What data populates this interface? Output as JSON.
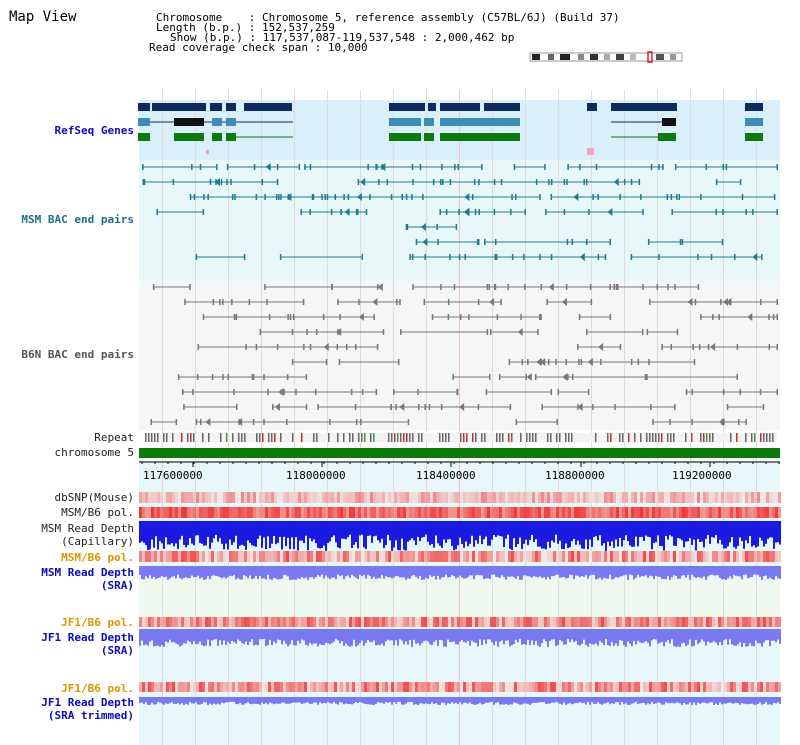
{
  "page": {
    "title": "Map View"
  },
  "info": {
    "chromosome_key": "Chromosome",
    "chromosome_val": "Chromosome 5, reference assembly (C57BL/6J) (Build 37)",
    "length_key": "Length (b.p.)",
    "length_val": "152,537,259",
    "show_key": "Show (b.p.)",
    "show_val": "117,537,087-119,537,548 : 2,000,462 bp",
    "read_cov_key": "Read coverage check span",
    "read_cov_val": "10,000"
  },
  "tracks": {
    "refseq": "RefSeq Genes",
    "msm_bac": "MSM BAC end pairs",
    "b6n_bac": "B6N BAC end pairs",
    "repeat": "Repeat",
    "chromosome": "chromosome 5",
    "dbsnp": "dbSNP(Mouse)",
    "msm_b6_pol": "MSM/B6 pol.",
    "msm_read_depth_cap_1": "MSM Read Depth",
    "msm_read_depth_cap_2": "(Capillary)",
    "msm_b6_pol_2": "MSM/B6 pol.",
    "msm_read_depth_sra_1": "MSM Read Depth",
    "msm_read_depth_sra_2": "(SRA)",
    "jf1_b6_pol": "JF1/B6 pol.",
    "jf1_read_depth_sra_1": "JF1 Read Depth",
    "jf1_read_depth_sra_2": "(SRA)",
    "jf1_b6_pol_2": "JF1/B6 pol.",
    "jf1_read_depth_trim_1": "JF1 Read Depth",
    "jf1_read_depth_trim_2": "(SRA trimmed)"
  },
  "axis": {
    "ticks": [
      "117600000",
      "118000000",
      "118400000",
      "118800000",
      "119200000"
    ]
  },
  "colors": {
    "refseq_bg": "#d9f0fa",
    "msm_bg": "#e8f8f8",
    "b6n_bg": "#f4f6f8",
    "gene_navy": "#0d2b5e",
    "gene_teal": "#3c8db8",
    "gene_green": "#0c7a0c",
    "msm_pair": "#1f7a92",
    "b6n_pair": "#777777",
    "chromosome_bar": "#0a7a0a",
    "polymorph_red": "#e8322b",
    "depth_blue": "#1a1ae0",
    "depth_light": "#7a7af0"
  }
}
